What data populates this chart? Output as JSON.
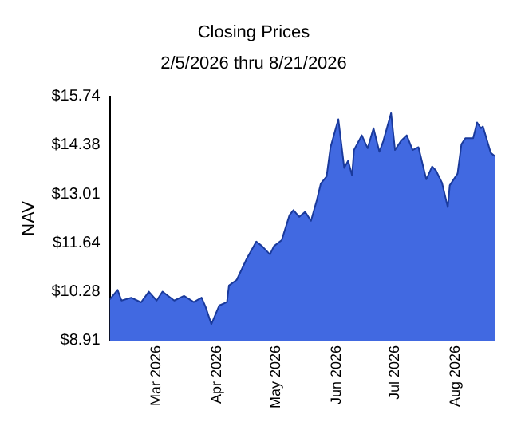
{
  "chart_data": {
    "type": "area",
    "title": "Closing Prices",
    "subtitle": "2/5/2026 thru 8/21/2026",
    "ylabel": "NAV",
    "x": [
      "2026-02-05",
      "2026-02-09",
      "2026-02-11",
      "2026-02-16",
      "2026-02-21",
      "2026-02-25",
      "2026-03-01",
      "2026-03-04",
      "2026-03-10",
      "2026-03-15",
      "2026-03-20",
      "2026-03-24",
      "2026-03-26",
      "2026-03-29",
      "2026-04-02",
      "2026-04-06",
      "2026-04-07",
      "2026-04-11",
      "2026-04-16",
      "2026-04-21",
      "2026-04-24",
      "2026-04-28",
      "2026-04-30",
      "2026-05-04",
      "2026-05-08",
      "2026-05-10",
      "2026-05-13",
      "2026-05-16",
      "2026-05-19",
      "2026-05-22",
      "2026-05-24",
      "2026-05-27",
      "2026-05-29",
      "2026-06-02",
      "2026-06-03",
      "2026-06-05",
      "2026-06-07",
      "2026-06-09",
      "2026-06-10",
      "2026-06-14",
      "2026-06-17",
      "2026-06-20",
      "2026-06-23",
      "2026-06-25",
      "2026-06-29",
      "2026-07-01",
      "2026-07-04",
      "2026-07-07",
      "2026-07-10",
      "2026-07-13",
      "2026-07-17",
      "2026-07-20",
      "2026-07-22",
      "2026-07-25",
      "2026-07-28",
      "2026-07-29",
      "2026-08-02",
      "2026-08-04",
      "2026-08-06",
      "2026-08-10",
      "2026-08-12",
      "2026-08-14",
      "2026-08-15",
      "2026-08-19",
      "2026-08-21"
    ],
    "series": [
      {
        "color": "#4169e1",
        "values": [
          10.06,
          10.33,
          10.03,
          10.11,
          9.98,
          10.28,
          10.03,
          10.28,
          10.03,
          10.16,
          9.99,
          10.11,
          9.86,
          9.37,
          9.89,
          9.99,
          10.45,
          10.61,
          11.19,
          11.68,
          11.55,
          11.32,
          11.55,
          11.72,
          12.42,
          12.56,
          12.37,
          12.51,
          12.26,
          12.84,
          13.3,
          13.5,
          14.32,
          15.1,
          14.65,
          13.74,
          13.94,
          13.53,
          14.24,
          14.65,
          14.29,
          14.85,
          14.19,
          14.49,
          15.27,
          14.24,
          14.49,
          14.65,
          14.24,
          14.32,
          13.42,
          13.78,
          13.66,
          13.33,
          12.64,
          13.25,
          13.58,
          14.4,
          14.57,
          14.57,
          15.01,
          14.85,
          14.9,
          14.16,
          14.07
        ]
      }
    ],
    "xlim": [
      "2026-02-05",
      "2026-08-21"
    ],
    "xticks": [
      {
        "value": "2026-03-01",
        "label": "Mar 2026"
      },
      {
        "value": "2026-04-01",
        "label": "Apr 2026"
      },
      {
        "value": "2026-05-01",
        "label": "May 2026"
      },
      {
        "value": "2026-06-01",
        "label": "Jun 2026"
      },
      {
        "value": "2026-07-01",
        "label": "Jul 2026"
      },
      {
        "value": "2026-08-01",
        "label": "Aug 2026"
      }
    ],
    "ylim": [
      8.91,
      15.74
    ],
    "yticks": [
      {
        "value": 8.91,
        "label": "$8.91"
      },
      {
        "value": 10.28,
        "label": "$10.28"
      },
      {
        "value": 11.64,
        "label": "$11.64"
      },
      {
        "value": 13.01,
        "label": "$13.01"
      },
      {
        "value": 14.38,
        "label": "$14.38"
      },
      {
        "value": 15.74,
        "label": "$15.74"
      }
    ],
    "grid": false,
    "legend": false
  }
}
